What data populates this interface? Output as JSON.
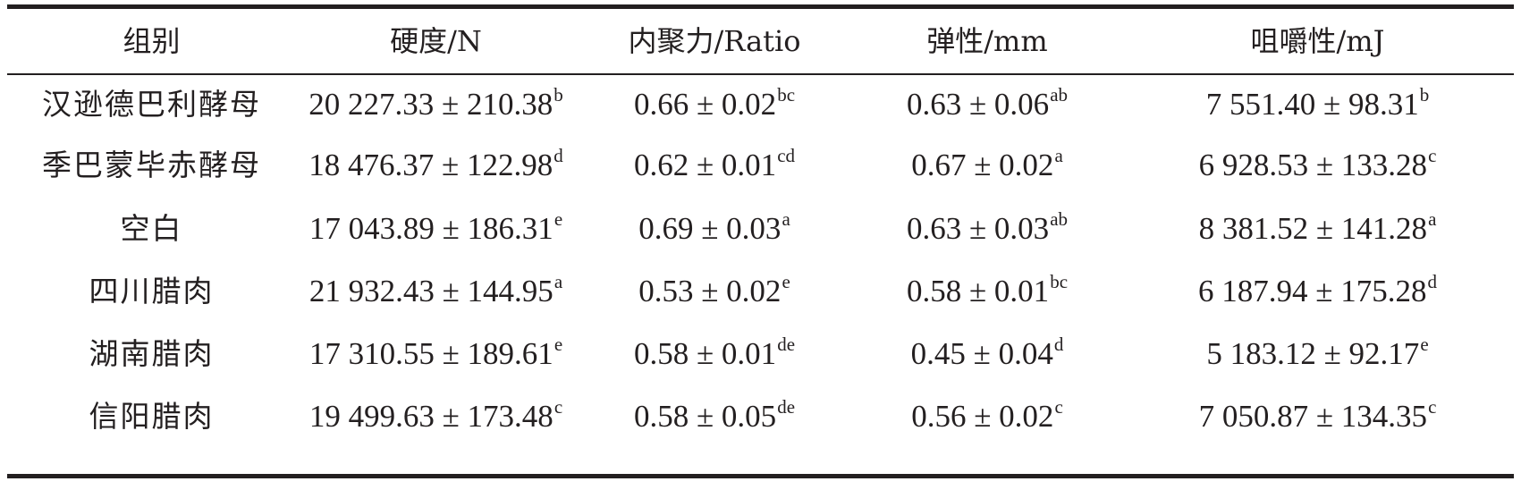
{
  "table": {
    "headers": [
      "组别",
      "硬度/N",
      "内聚力/Ratio",
      "弹性/mm",
      "咀嚼性/mJ"
    ],
    "rows": [
      {
        "group": "汉逊德巴利酵母",
        "hardness": {
          "value": "20 227.33 ± 210.38",
          "sup": "b"
        },
        "cohesiveness": {
          "value": "0.66 ± 0.02",
          "sup": "bc"
        },
        "springiness": {
          "value": "0.63 ± 0.06",
          "sup": "ab"
        },
        "chewiness": {
          "value": "7 551.40 ± 98.31",
          "sup": "b"
        }
      },
      {
        "group": "季巴蒙毕赤酵母",
        "hardness": {
          "value": "18 476.37 ± 122.98",
          "sup": "d"
        },
        "cohesiveness": {
          "value": "0.62 ± 0.01",
          "sup": "cd"
        },
        "springiness": {
          "value": "0.67 ± 0.02",
          "sup": "a"
        },
        "chewiness": {
          "value": "6 928.53 ± 133.28",
          "sup": "c"
        }
      },
      {
        "group": "空白",
        "hardness": {
          "value": "17 043.89 ± 186.31",
          "sup": "e"
        },
        "cohesiveness": {
          "value": "0.69 ± 0.03",
          "sup": "a"
        },
        "springiness": {
          "value": "0.63 ± 0.03",
          "sup": "ab"
        },
        "chewiness": {
          "value": "8 381.52 ± 141.28",
          "sup": "a"
        }
      },
      {
        "group": "四川腊肉",
        "hardness": {
          "value": "21 932.43 ± 144.95",
          "sup": "a"
        },
        "cohesiveness": {
          "value": "0.53 ± 0.02",
          "sup": "e"
        },
        "springiness": {
          "value": "0.58 ± 0.01",
          "sup": "bc"
        },
        "chewiness": {
          "value": "6 187.94 ± 175.28",
          "sup": "d"
        }
      },
      {
        "group": "湖南腊肉",
        "hardness": {
          "value": "17 310.55 ± 189.61",
          "sup": "e"
        },
        "cohesiveness": {
          "value": "0.58 ± 0.01",
          "sup": "de"
        },
        "springiness": {
          "value": "0.45 ± 0.04",
          "sup": "d"
        },
        "chewiness": {
          "value": "5 183.12 ± 92.17",
          "sup": "e"
        }
      },
      {
        "group": "信阳腊肉",
        "hardness": {
          "value": "19 499.63 ± 173.48",
          "sup": "c"
        },
        "cohesiveness": {
          "value": "0.58 ± 0.05",
          "sup": "de"
        },
        "springiness": {
          "value": "0.56 ± 0.02",
          "sup": "c"
        },
        "chewiness": {
          "value": "7 050.87 ± 134.35",
          "sup": "c"
        }
      }
    ]
  }
}
